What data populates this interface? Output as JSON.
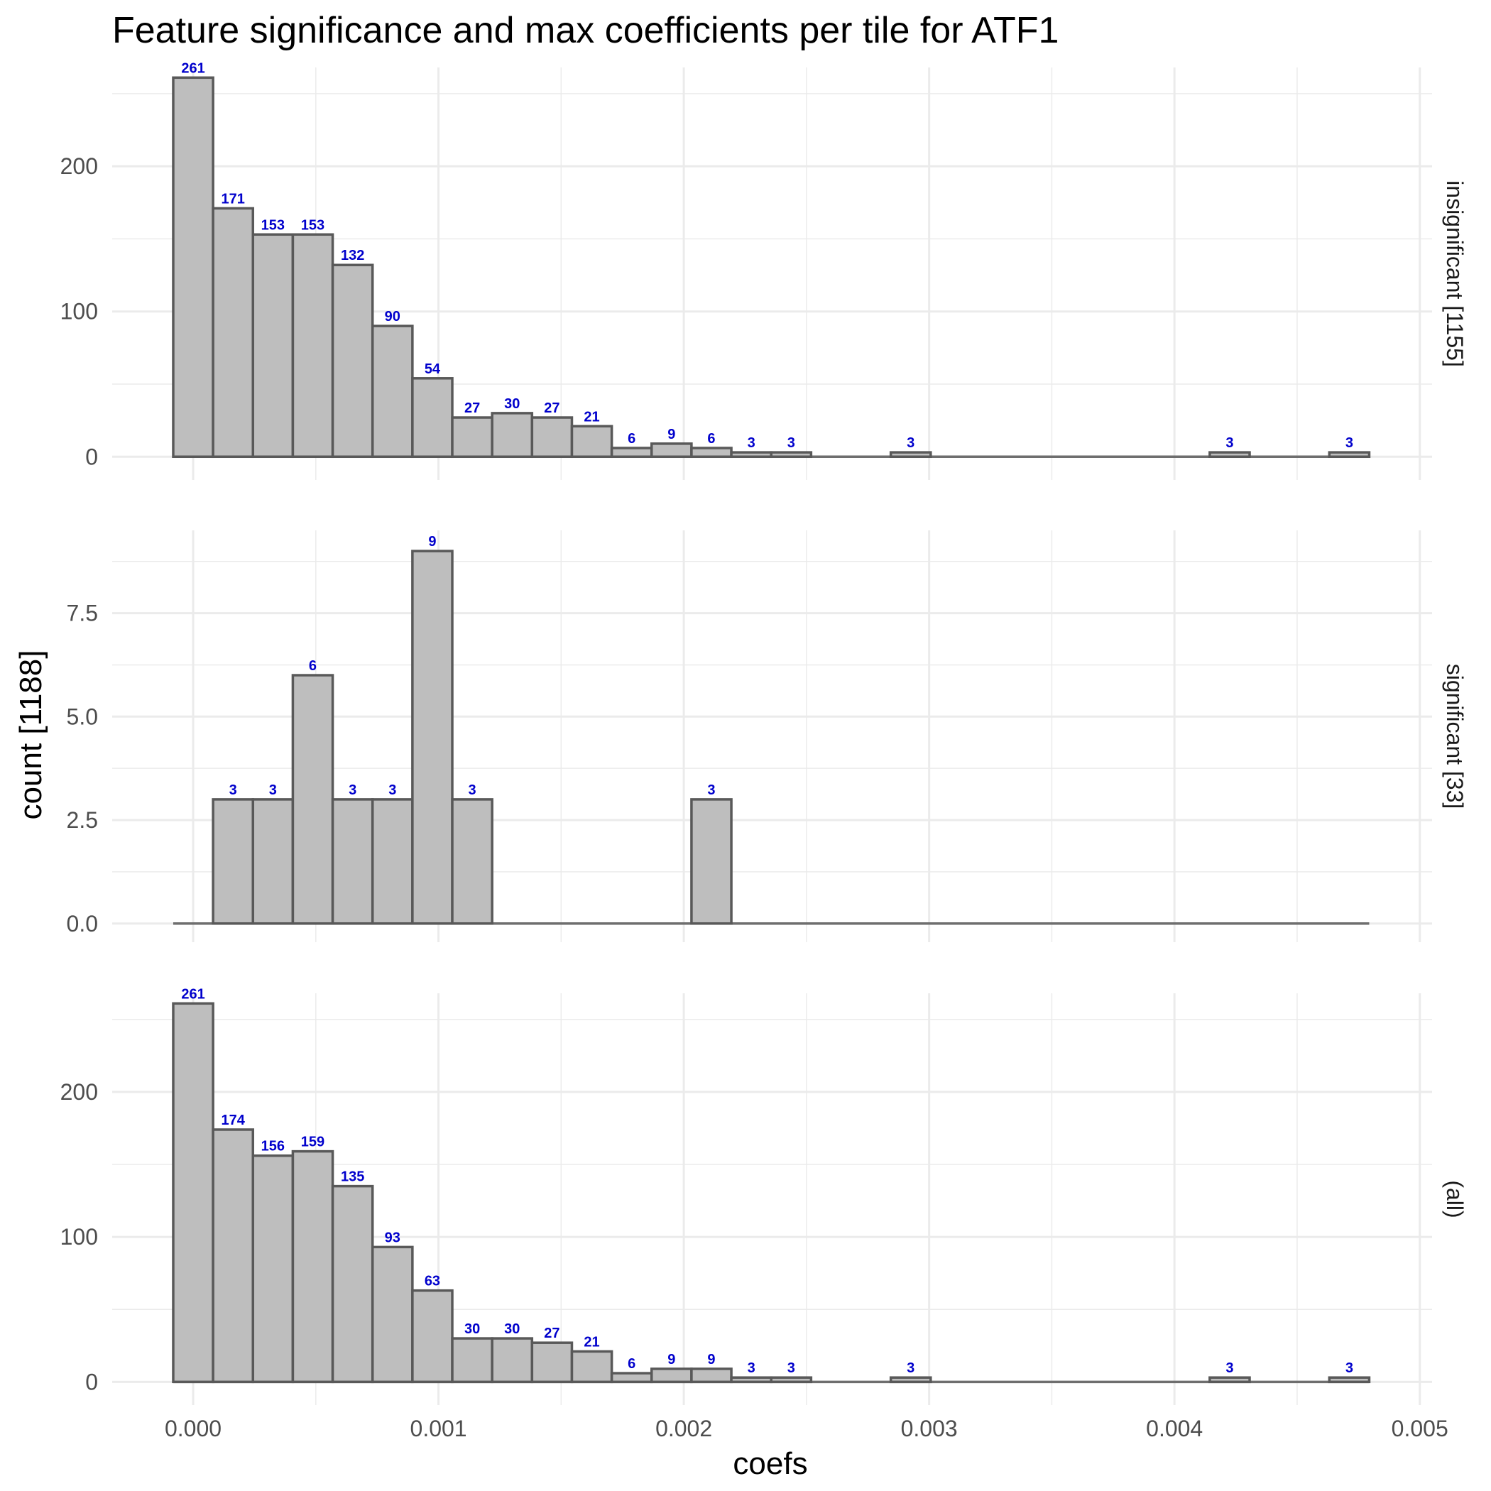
{
  "chart_data": {
    "type": "bar",
    "title": "Feature significance and max coefficients per tile for ATF1",
    "xlabel": "coefs",
    "ylabel": "count [1188]",
    "xlim": [
      -0.00033,
      0.00505
    ],
    "x_ticks": [
      "0.000",
      "0.001",
      "0.002",
      "0.003",
      "0.004",
      "0.005"
    ],
    "bin_start": -8.12e-05,
    "bin_width": 0.0001625,
    "n_bins": 30,
    "grid": true,
    "facets": [
      {
        "strip": "insignificant [1155]",
        "ylim": [
          -16,
          268
        ],
        "y_ticks": [
          0,
          100,
          200
        ],
        "y_tick_labels": [
          "0",
          "100",
          "200"
        ],
        "bins": [
          {
            "bin": 0,
            "count": 261,
            "label": "261"
          },
          {
            "bin": 1,
            "count": 171,
            "label": "171"
          },
          {
            "bin": 2,
            "count": 153,
            "label": "153"
          },
          {
            "bin": 3,
            "count": 153,
            "label": "153"
          },
          {
            "bin": 4,
            "count": 132,
            "label": "132"
          },
          {
            "bin": 5,
            "count": 90,
            "label": "90"
          },
          {
            "bin": 6,
            "count": 54,
            "label": "54"
          },
          {
            "bin": 7,
            "count": 27,
            "label": "27"
          },
          {
            "bin": 8,
            "count": 30,
            "label": "30"
          },
          {
            "bin": 9,
            "count": 27,
            "label": "27"
          },
          {
            "bin": 10,
            "count": 21,
            "label": "21"
          },
          {
            "bin": 11,
            "count": 6,
            "label": "6"
          },
          {
            "bin": 12,
            "count": 9,
            "label": "9"
          },
          {
            "bin": 13,
            "count": 6,
            "label": "6"
          },
          {
            "bin": 14,
            "count": 3,
            "label": "3"
          },
          {
            "bin": 15,
            "count": 3,
            "label": "3"
          },
          {
            "bin": 18,
            "count": 3,
            "label": "3"
          },
          {
            "bin": 26,
            "count": 3,
            "label": "3"
          },
          {
            "bin": 29,
            "count": 3,
            "label": "3"
          }
        ]
      },
      {
        "strip": "significant [33]",
        "ylim": [
          -0.45,
          9.5
        ],
        "y_ticks": [
          0,
          2.5,
          5,
          7.5
        ],
        "y_tick_labels": [
          "0.0",
          "2.5",
          "5.0",
          "7.5"
        ],
        "bins": [
          {
            "bin": 1,
            "count": 3,
            "label": "3"
          },
          {
            "bin": 2,
            "count": 3,
            "label": "3"
          },
          {
            "bin": 3,
            "count": 6,
            "label": "6"
          },
          {
            "bin": 4,
            "count": 3,
            "label": "3"
          },
          {
            "bin": 5,
            "count": 3,
            "label": "3"
          },
          {
            "bin": 6,
            "count": 9,
            "label": "9"
          },
          {
            "bin": 7,
            "count": 3,
            "label": "3"
          },
          {
            "bin": 13,
            "count": 3,
            "label": "3"
          }
        ]
      },
      {
        "strip": "(all)",
        "ylim": [
          -16,
          268
        ],
        "y_ticks": [
          0,
          100,
          200
        ],
        "y_tick_labels": [
          "0",
          "100",
          "200"
        ],
        "bins": [
          {
            "bin": 0,
            "count": 261,
            "label": "261"
          },
          {
            "bin": 1,
            "count": 174,
            "label": "174"
          },
          {
            "bin": 2,
            "count": 156,
            "label": "156"
          },
          {
            "bin": 3,
            "count": 159,
            "label": "159"
          },
          {
            "bin": 4,
            "count": 135,
            "label": "135"
          },
          {
            "bin": 5,
            "count": 93,
            "label": "93"
          },
          {
            "bin": 6,
            "count": 63,
            "label": "63"
          },
          {
            "bin": 7,
            "count": 30,
            "label": "30"
          },
          {
            "bin": 8,
            "count": 30,
            "label": "30"
          },
          {
            "bin": 9,
            "count": 27,
            "label": "27"
          },
          {
            "bin": 10,
            "count": 21,
            "label": "21"
          },
          {
            "bin": 11,
            "count": 6,
            "label": "6"
          },
          {
            "bin": 12,
            "count": 9,
            "label": "9"
          },
          {
            "bin": 13,
            "count": 9,
            "label": "9"
          },
          {
            "bin": 14,
            "count": 3,
            "label": "3"
          },
          {
            "bin": 15,
            "count": 3,
            "label": "3"
          },
          {
            "bin": 18,
            "count": 3,
            "label": "3"
          },
          {
            "bin": 26,
            "count": 3,
            "label": "3"
          },
          {
            "bin": 29,
            "count": 3,
            "label": "3"
          }
        ]
      }
    ]
  }
}
